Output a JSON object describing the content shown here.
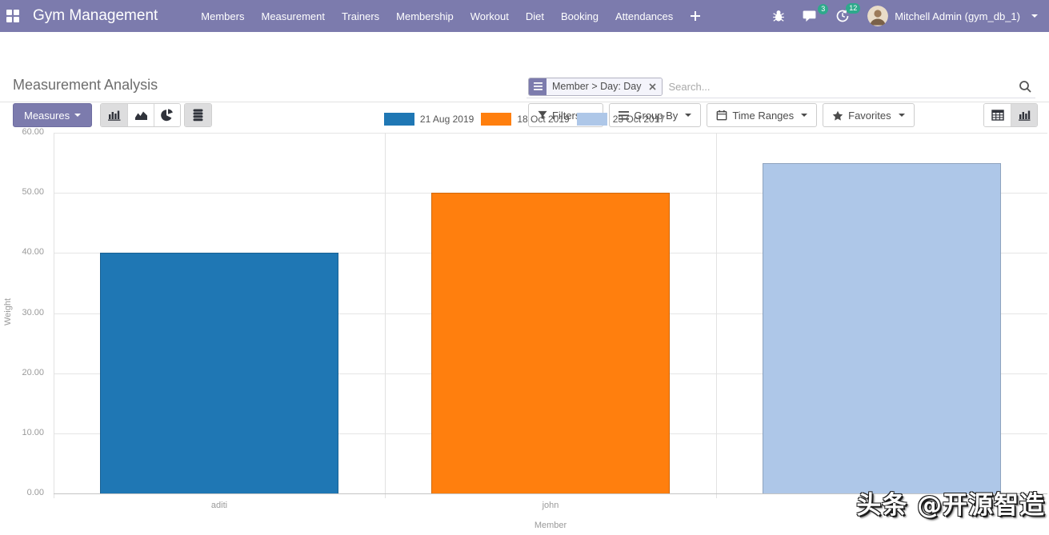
{
  "navbar": {
    "brand": "Gym Management",
    "menu_items": [
      "Members",
      "Measurement",
      "Trainers",
      "Membership",
      "Workout",
      "Diet",
      "Booking",
      "Attendances"
    ],
    "messages_badge": "3",
    "activities_badge": "12",
    "user": "Mitchell Admin (gym_db_1)",
    "colors": {
      "navbar_bg": "#7c7bad",
      "badge_bg": "#2ea98c"
    }
  },
  "control_panel": {
    "title": "Measurement Analysis",
    "search": {
      "facet_label": "Member > Day: Day",
      "placeholder": "Search..."
    },
    "buttons": {
      "measures": "Measures",
      "filters": "Filters",
      "group_by": "Group By",
      "time_ranges": "Time Ranges",
      "favorites": "Favorites"
    }
  },
  "chart_data": {
    "type": "bar",
    "title": "",
    "xlabel": "Member",
    "ylabel": "Weight",
    "ylim": [
      0,
      60
    ],
    "ytick_step": 10,
    "ytick_labels": [
      "0.00",
      "10.00",
      "20.00",
      "30.00",
      "40.00",
      "50.00",
      "60.00"
    ],
    "categories": [
      "aditi",
      "john",
      ""
    ],
    "series": [
      {
        "name": "21 Aug 2019",
        "color": "#1f77b4",
        "values": [
          40,
          null,
          null
        ]
      },
      {
        "name": "18 Oct 2019",
        "color": "#ff7f0e",
        "values": [
          null,
          50,
          null
        ]
      },
      {
        "name": "23 Oct 2017",
        "color": "#aec7e8",
        "values": [
          null,
          null,
          55
        ]
      }
    ],
    "grid": true,
    "legend_position": "top"
  },
  "watermark": {
    "text": "头条 @开源智造"
  }
}
